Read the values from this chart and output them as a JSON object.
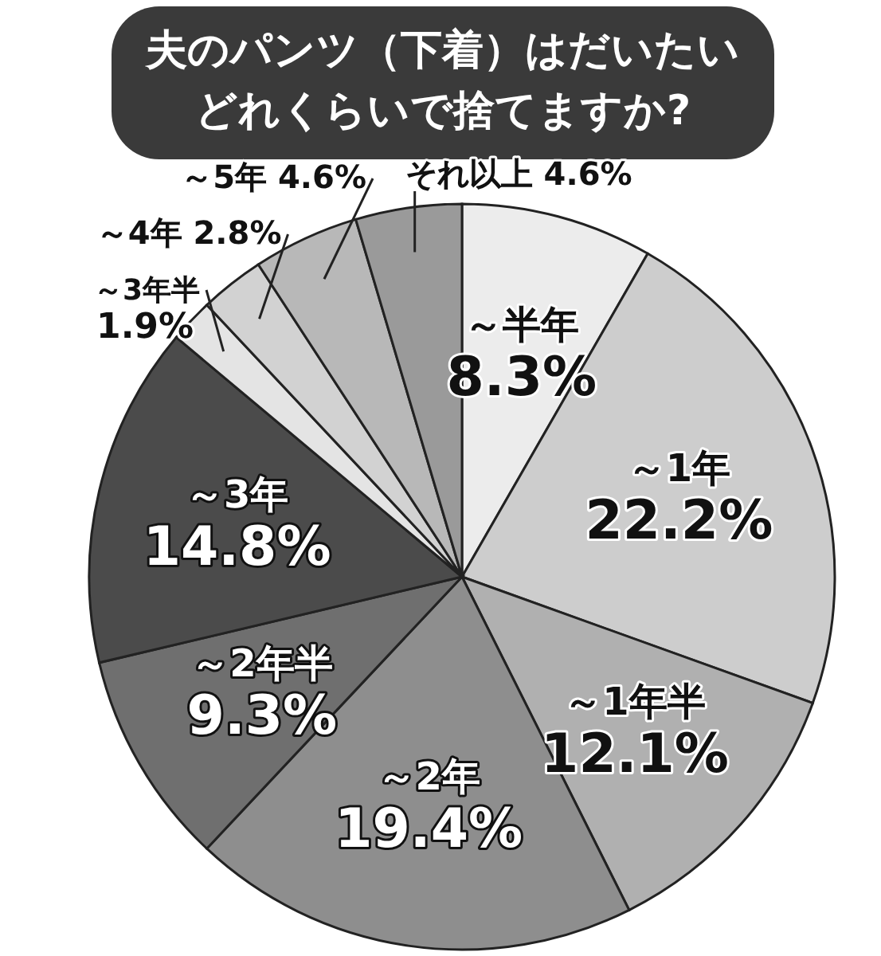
{
  "chart_data": {
    "type": "pie",
    "title": "夫のパンツ（下着）はだいたいどれくらいで捨てますか?",
    "categories": [
      "～半年",
      "～1年",
      "～1年半",
      "～2年",
      "～2年半",
      "～3年",
      "～3年半",
      "～4年",
      "～5年",
      "それ以上"
    ],
    "values": [
      8.3,
      22.2,
      12.1,
      19.4,
      9.3,
      14.8,
      1.9,
      2.8,
      4.6,
      4.6
    ],
    "value_labels": [
      "8.3%",
      "22.2%",
      "12.1%",
      "19.4%",
      "9.3%",
      "14.8%",
      "1.9%",
      "2.8%",
      "4.6%",
      "4.6%"
    ],
    "colors": [
      "#ececec",
      "#cdcdcd",
      "#b0b0b0",
      "#8e8e8e",
      "#6f6f6f",
      "#4b4b4b",
      "#e4e4e4",
      "#d2d2d2",
      "#b8b8b8",
      "#9a9a9a"
    ]
  }
}
